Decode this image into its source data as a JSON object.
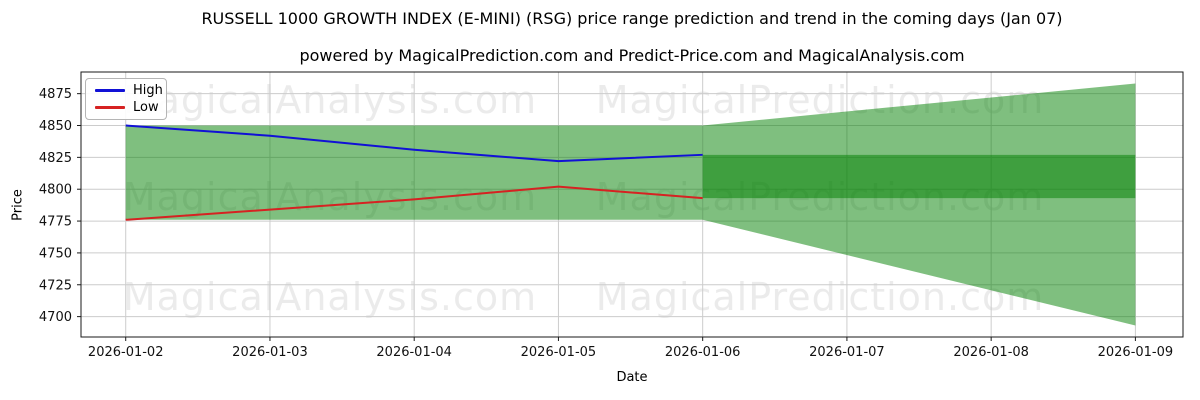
{
  "watermark": {
    "text_left": "MagicalAnalysis.com",
    "text_right": "MagicalPrediction.com"
  },
  "chart_data": {
    "type": "line",
    "title": "RUSSELL 1000 GROWTH INDEX (E-MINI) (RSG) price range prediction and trend in the coming days (Jan 07)",
    "subtitle": "powered by MagicalPrediction.com and Predict-Price.com and MagicalAnalysis.com",
    "xlabel": "Date",
    "ylabel": "Price",
    "x_tick_labels": [
      "2026-01-02",
      "2026-01-03",
      "2026-01-04",
      "2026-01-05",
      "2026-01-06",
      "2026-01-07",
      "2026-01-08",
      "2026-01-09"
    ],
    "y_ticks": [
      4700,
      4725,
      4750,
      4775,
      4800,
      4825,
      4850,
      4875
    ],
    "ylim": [
      4684,
      4892
    ],
    "x_range_days": [
      -0.31,
      7.33
    ],
    "grid": true,
    "grid_color": "#cccccc",
    "spine_color": "#1a1a1a",
    "legend": {
      "position": "upper-left",
      "entries": [
        {
          "label": "High",
          "color": "#1111d6"
        },
        {
          "label": "Low",
          "color": "#d62222"
        }
      ]
    },
    "series": [
      {
        "name": "High",
        "color": "#1111d6",
        "days": [
          0,
          1,
          2,
          3,
          4
        ],
        "values": [
          4850,
          4842,
          4831,
          4822,
          4827
        ]
      },
      {
        "name": "Low",
        "color": "#d62222",
        "days": [
          0,
          1,
          2,
          3,
          4
        ],
        "values": [
          4776,
          4784,
          4792,
          4802,
          4793
        ]
      }
    ],
    "bands": [
      {
        "name": "historical-range-band",
        "color": "rgba(0,128,0,0.5)",
        "days": [
          0,
          4
        ],
        "top": [
          4850,
          4850
        ],
        "bottom": [
          4776,
          4776
        ]
      },
      {
        "name": "forecast-cone-band",
        "color": "rgba(0,128,0,0.5)",
        "days": [
          4,
          7
        ],
        "top": [
          4850,
          4883
        ],
        "bottom": [
          4776,
          4693
        ]
      },
      {
        "name": "forecast-core-band",
        "color": "rgba(0,128,0,0.5)",
        "days": [
          4,
          7
        ],
        "top": [
          4827,
          4827
        ],
        "bottom": [
          4793,
          4793
        ]
      }
    ]
  }
}
